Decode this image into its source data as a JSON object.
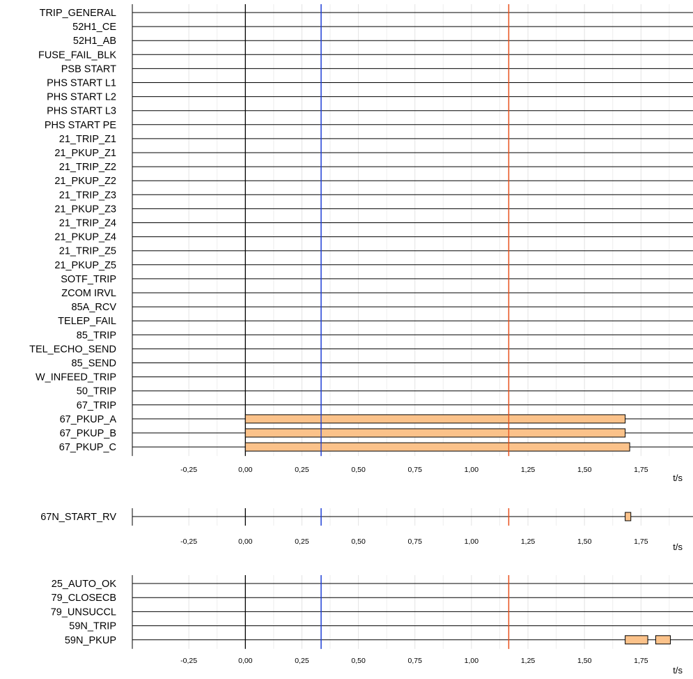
{
  "chart_data": [
    {
      "type": "timeline",
      "x_unit": "t/s",
      "xlim": [
        -0.5,
        1.98
      ],
      "x_ticks": [
        -0.25,
        0.0,
        0.25,
        0.5,
        0.75,
        1.0,
        1.25,
        1.5,
        1.75
      ],
      "x_tick_labels": [
        "-0,25",
        "0,00",
        "0,25",
        "0,50",
        "0,75",
        "1,00",
        "1,25",
        "1,50",
        "1,75"
      ],
      "markers": [
        {
          "x": 0.0,
          "color": "#000000"
        },
        {
          "x": 0.335,
          "color": "#1f3fd6"
        },
        {
          "x": 1.165,
          "color": "#e8501c"
        }
      ],
      "signals": [
        {
          "name": "TRIP_GENERAL",
          "active": []
        },
        {
          "name": "52H1_CE",
          "active": []
        },
        {
          "name": "52H1_AB",
          "active": []
        },
        {
          "name": "FUSE_FAIL_BLK",
          "active": []
        },
        {
          "name": "PSB START",
          "active": []
        },
        {
          "name": "PHS START L1",
          "active": []
        },
        {
          "name": "PHS START L2",
          "active": []
        },
        {
          "name": "PHS START L3",
          "active": []
        },
        {
          "name": "PHS START PE",
          "active": []
        },
        {
          "name": "21_TRIP_Z1",
          "active": []
        },
        {
          "name": "21_PKUP_Z1",
          "active": []
        },
        {
          "name": "21_TRIP_Z2",
          "active": []
        },
        {
          "name": "21_PKUP_Z2",
          "active": []
        },
        {
          "name": "21_TRIP_Z3",
          "active": []
        },
        {
          "name": "21_PKUP_Z3",
          "active": []
        },
        {
          "name": "21_TRIP_Z4",
          "active": []
        },
        {
          "name": "21_PKUP_Z4",
          "active": []
        },
        {
          "name": "21_TRIP_Z5",
          "active": []
        },
        {
          "name": "21_PKUP_Z5",
          "active": []
        },
        {
          "name": "SOTF_TRIP",
          "active": []
        },
        {
          "name": "ZCOM IRVL",
          "active": []
        },
        {
          "name": "85A_RCV",
          "active": []
        },
        {
          "name": "TELEP_FAIL",
          "active": []
        },
        {
          "name": "85_TRIP",
          "active": []
        },
        {
          "name": "TEL_ECHO_SEND",
          "active": []
        },
        {
          "name": "85_SEND",
          "active": []
        },
        {
          "name": "W_INFEED_TRIP",
          "active": []
        },
        {
          "name": "50_TRIP",
          "active": []
        },
        {
          "name": "67_TRIP",
          "active": []
        },
        {
          "name": "67_PKUP_A",
          "active": [
            [
              0.0,
              1.68
            ]
          ]
        },
        {
          "name": "67_PKUP_B",
          "active": [
            [
              0.0,
              1.68
            ]
          ]
        },
        {
          "name": "67_PKUP_C",
          "active": [
            [
              0.0,
              1.7
            ]
          ]
        }
      ]
    },
    {
      "type": "timeline",
      "x_unit": "t/s",
      "xlim": [
        -0.5,
        1.98
      ],
      "x_ticks": [
        -0.25,
        0.0,
        0.25,
        0.5,
        0.75,
        1.0,
        1.25,
        1.5,
        1.75
      ],
      "x_tick_labels": [
        "-0,25",
        "0,00",
        "0,25",
        "0,50",
        "0,75",
        "1,00",
        "1,25",
        "1,50",
        "1,75"
      ],
      "markers": [
        {
          "x": 0.0,
          "color": "#000000"
        },
        {
          "x": 0.335,
          "color": "#1f3fd6"
        },
        {
          "x": 1.165,
          "color": "#e8501c"
        }
      ],
      "signals": [
        {
          "name": "67N_START_RV",
          "active": [
            [
              1.68,
              1.705
            ]
          ]
        }
      ]
    },
    {
      "type": "timeline",
      "x_unit": "t/s",
      "xlim": [
        -0.5,
        1.98
      ],
      "x_ticks": [
        -0.25,
        0.0,
        0.25,
        0.5,
        0.75,
        1.0,
        1.25,
        1.5,
        1.75
      ],
      "x_tick_labels": [
        "-0,25",
        "0,00",
        "0,25",
        "0,50",
        "0,75",
        "1,00",
        "1,25",
        "1,50",
        "1,75"
      ],
      "markers": [
        {
          "x": 0.0,
          "color": "#000000"
        },
        {
          "x": 0.335,
          "color": "#1f3fd6"
        },
        {
          "x": 1.165,
          "color": "#e8501c"
        }
      ],
      "signals": [
        {
          "name": "25_AUTO_OK",
          "active": []
        },
        {
          "name": "79_CLOSECB",
          "active": []
        },
        {
          "name": "79_UNSUCCL",
          "active": []
        },
        {
          "name": "59N_TRIP",
          "active": []
        },
        {
          "name": "59N_PKUP",
          "active": [
            [
              1.68,
              1.78
            ],
            [
              1.815,
              1.88
            ]
          ]
        }
      ]
    }
  ],
  "colors": {
    "bar_fill": "#fbc28a",
    "bar_stroke": "#000000",
    "grid": "#e3e3e3",
    "axis": "#000000"
  }
}
